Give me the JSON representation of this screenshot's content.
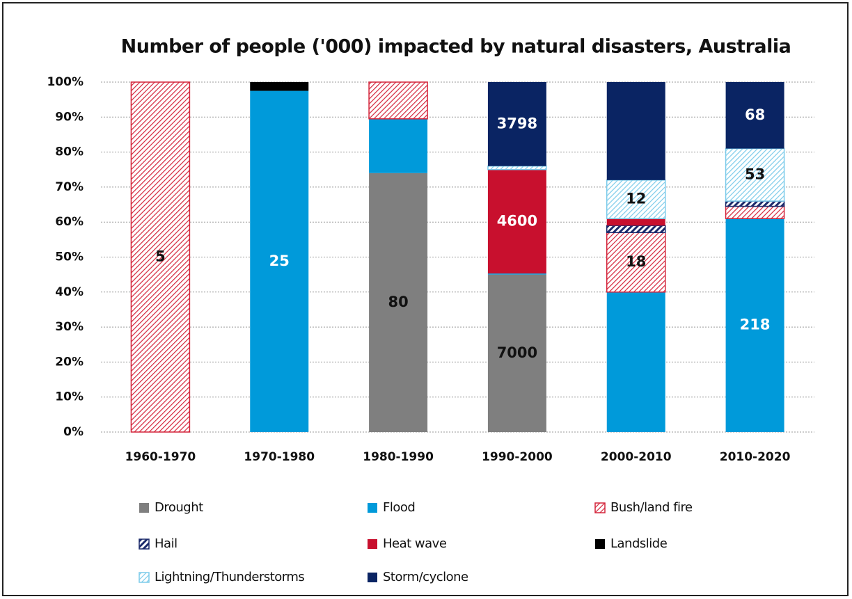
{
  "chart_data": {
    "type": "stacked_bar_100",
    "title": "Number of people ('000) impacted by natural disasters, Australia",
    "categories": [
      "1960-1970",
      "1970-1980",
      "1980-1990",
      "1990-2000",
      "2000-2010",
      "2010-2020"
    ],
    "ylim": [
      0,
      100
    ],
    "yticks": [
      {
        "value": 0,
        "label": "0%"
      },
      {
        "value": 10,
        "label": "10%"
      },
      {
        "value": 20,
        "label": "20%"
      },
      {
        "value": 30,
        "label": "30%"
      },
      {
        "value": 40,
        "label": "40%"
      },
      {
        "value": 50,
        "label": "50%"
      },
      {
        "value": 60,
        "label": "60%"
      },
      {
        "value": 70,
        "label": "70%"
      },
      {
        "value": 80,
        "label": "80%"
      },
      {
        "value": 90,
        "label": "90%"
      },
      {
        "value": 100,
        "label": "100%"
      }
    ],
    "grid": true,
    "legend": "bottom",
    "series": [
      {
        "name": "Drought",
        "color": "#7f7f7f",
        "pattern": "solid",
        "values": [
          null,
          null,
          74,
          45,
          null,
          null
        ],
        "counts": [
          null,
          null,
          80,
          7000,
          null,
          null
        ]
      },
      {
        "name": "Flood",
        "color": "#009ada",
        "pattern": "solid",
        "values": [
          null,
          97.5,
          15.5,
          0.3,
          40,
          61
        ],
        "counts": [
          null,
          25,
          null,
          null,
          null,
          218
        ]
      },
      {
        "name": "Bush/land fire",
        "color": "#d4243a",
        "pattern": "hatch",
        "values": [
          100,
          null,
          10.5,
          null,
          17,
          3.5
        ],
        "counts": [
          5,
          null,
          null,
          null,
          18,
          null
        ]
      },
      {
        "name": "Hail",
        "color": "#1b2a6b",
        "pattern": "hatch-dense",
        "values": [
          null,
          null,
          null,
          null,
          2,
          1.5
        ],
        "counts": [
          null,
          null,
          null,
          null,
          null,
          null
        ]
      },
      {
        "name": "Heat wave",
        "color": "#c8102e",
        "pattern": "solid",
        "values": [
          null,
          null,
          null,
          29.7,
          2,
          null
        ],
        "counts": [
          null,
          null,
          null,
          4600,
          null,
          null
        ]
      },
      {
        "name": "Landslide",
        "color": "#000000",
        "pattern": "solid",
        "values": [
          null,
          2.5,
          null,
          null,
          null,
          null
        ],
        "counts": [
          null,
          null,
          null,
          null,
          null,
          null
        ]
      },
      {
        "name": "Lightning/Thunderstorms",
        "color": "#7ccbea",
        "pattern": "hatch",
        "values": [
          null,
          null,
          null,
          1,
          11,
          15
        ],
        "counts": [
          null,
          null,
          null,
          null,
          12,
          53
        ]
      },
      {
        "name": "Storm/cyclone",
        "color": "#0a2463",
        "pattern": "solid",
        "values": [
          null,
          null,
          null,
          24,
          28,
          19
        ],
        "counts": [
          null,
          null,
          null,
          3798,
          null,
          68
        ]
      }
    ]
  }
}
